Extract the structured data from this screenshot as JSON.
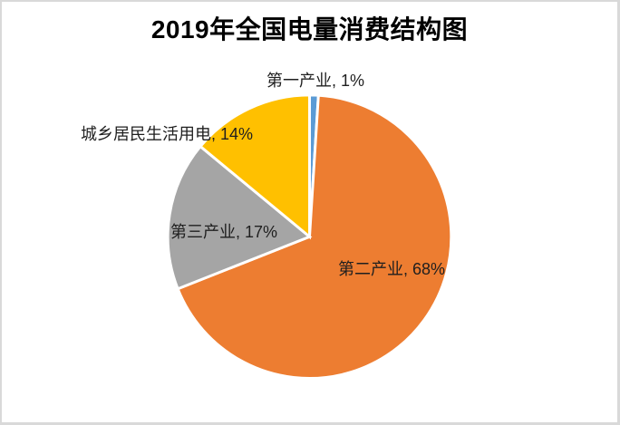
{
  "canvas": {
    "background_color": "#FFFFFF",
    "frame_border_color": "#D9D9D9"
  },
  "chart_data": {
    "type": "pie",
    "title": "2019年全国电量消费结构图",
    "categories": [
      "第一产业",
      "第二产业",
      "第三产业",
      "城乡居民生活用电"
    ],
    "values": [
      1,
      68,
      17,
      14
    ],
    "unit": "%",
    "colors": [
      "#5B9BD5",
      "#ED7D31",
      "#A5A5A5",
      "#FFC000"
    ],
    "slice_ids": [
      "primary-industry",
      "secondary-industry",
      "tertiary-industry",
      "residential-electricity"
    ],
    "slice_border_color": "#FFFFFF",
    "start_angle_deg": 0,
    "direction": "clockwise",
    "legend_position": "none",
    "grid": false,
    "data_labels": [
      "第一产业, 1%",
      "第二产业, 68%",
      "第三产业, 17%",
      "城乡居民生活用电, 14%"
    ]
  }
}
